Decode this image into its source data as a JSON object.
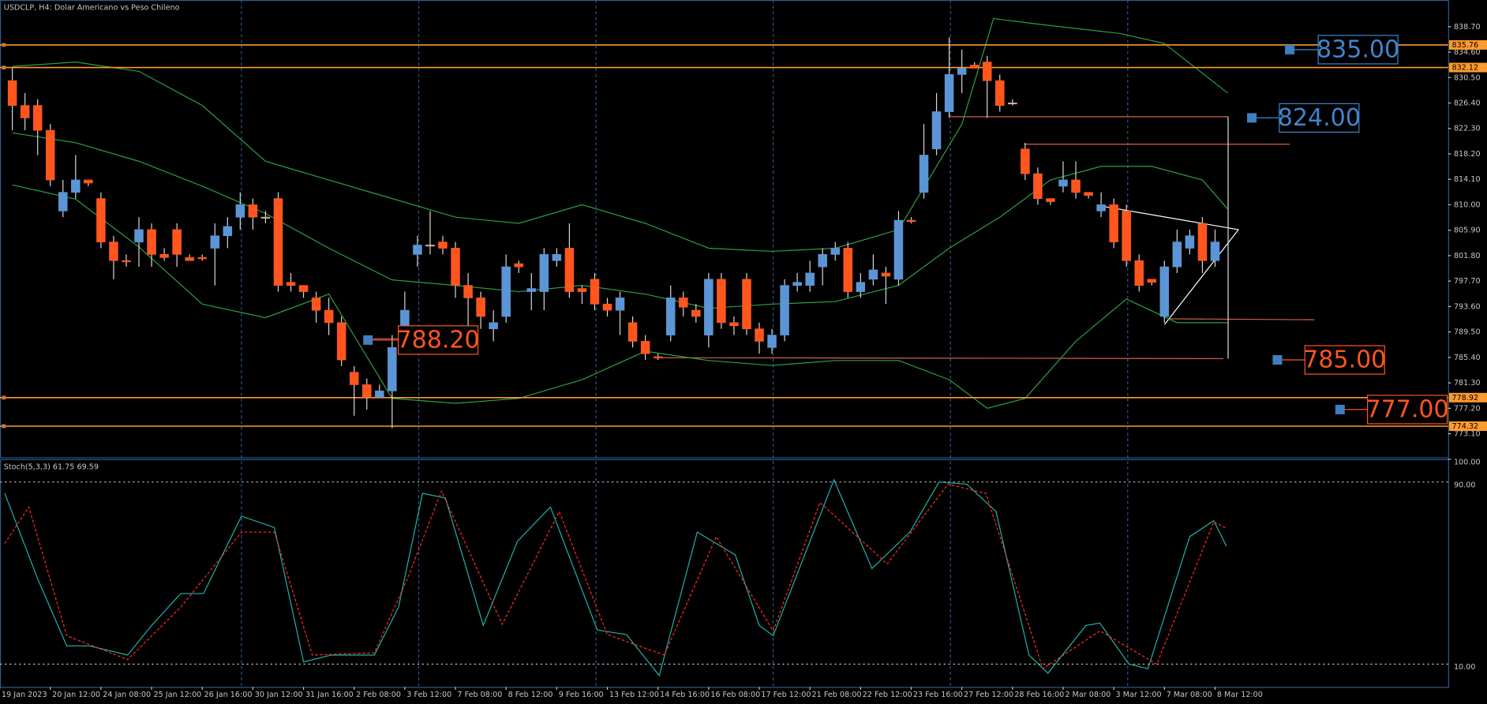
{
  "chart_data": {
    "type": "candlestick",
    "title": "USDCLP, H4:  Dolar Americano vs Peso Chileno",
    "up_color": "#5b95d6",
    "down_color": "#ff561e",
    "ylim": [
      769.3,
      843.0
    ],
    "yticks": [
      {
        "value": 838.7,
        "label": "838.70"
      },
      {
        "value": 834.6,
        "label": "834.60"
      },
      {
        "value": 830.5,
        "label": "830.50"
      },
      {
        "value": 826.4,
        "label": "826.40"
      },
      {
        "value": 822.3,
        "label": "822.30"
      },
      {
        "value": 818.2,
        "label": "818.20"
      },
      {
        "value": 814.1,
        "label": "814.10"
      },
      {
        "value": 810.0,
        "label": "810.00"
      },
      {
        "value": 805.9,
        "label": "805.90"
      },
      {
        "value": 801.8,
        "label": "801.80"
      },
      {
        "value": 797.7,
        "label": "797.70"
      },
      {
        "value": 793.6,
        "label": "793.60"
      },
      {
        "value": 789.5,
        "label": "789.50"
      },
      {
        "value": 785.4,
        "label": "785.40"
      },
      {
        "value": 781.3,
        "label": "781.30"
      },
      {
        "value": 777.2,
        "label": "777.20"
      },
      {
        "value": 773.1,
        "label": "773.10"
      }
    ],
    "xticks": [
      {
        "value": -1,
        "label": "19 Jan 2023"
      },
      {
        "value": 3,
        "label": "20 Jan 12:00"
      },
      {
        "value": 7,
        "label": "24 Jan 08:00"
      },
      {
        "value": 11,
        "label": "25 Jan 12:00"
      },
      {
        "value": 15,
        "label": "26 Jan 16:00"
      },
      {
        "value": 19,
        "label": "30 Jan 12:00"
      },
      {
        "value": 23,
        "label": "31 Jan 16:00"
      },
      {
        "value": 27,
        "label": "2 Feb 08:00"
      },
      {
        "value": 31,
        "label": "3 Feb 12:00"
      },
      {
        "value": 35,
        "label": "7 Feb 08:00"
      },
      {
        "value": 39,
        "label": "8 Feb 12:00"
      },
      {
        "value": 43,
        "label": "9 Feb 16:00"
      },
      {
        "value": 47,
        "label": "13 Feb 12:00"
      },
      {
        "value": 51,
        "label": "14 Feb 16:00"
      },
      {
        "value": 55,
        "label": "16 Feb 08:00"
      },
      {
        "value": 59,
        "label": "17 Feb 12:00"
      },
      {
        "value": 63,
        "label": "21 Feb 08:00"
      },
      {
        "value": 67,
        "label": "22 Feb 12:00"
      },
      {
        "value": 71,
        "label": "23 Feb 16:00"
      },
      {
        "value": 75,
        "label": "27 Feb 12:00"
      },
      {
        "value": 79,
        "label": "28 Feb 16:00"
      },
      {
        "value": 83,
        "label": "2 Mar 08:00"
      },
      {
        "value": 87,
        "label": "3 Mar 12:00"
      },
      {
        "value": 91,
        "label": "7 Mar 08:00"
      },
      {
        "value": 95,
        "label": "8 Mar 12:00"
      }
    ],
    "open": [
      830,
      826,
      826,
      822,
      809,
      812,
      814,
      811,
      804,
      801,
      804,
      806,
      802,
      806,
      801.5,
      801.5,
      803,
      805,
      808,
      810,
      808,
      811,
      797.5,
      797,
      795,
      793,
      791,
      783,
      781,
      779,
      780,
      788,
      802,
      803.5,
      804,
      803,
      797,
      795,
      790,
      792,
      800.5,
      796,
      796,
      801,
      803,
      796.5,
      798,
      794,
      793,
      791,
      788,
      785.5,
      789,
      795,
      793,
      789,
      798,
      791,
      798,
      790,
      787,
      789,
      797,
      797,
      800,
      802,
      803,
      796,
      798,
      799,
      798,
      807.5,
      812,
      819,
      825,
      831,
      832.5,
      833,
      830,
      826.4,
      819,
      815,
      811,
      813,
      814,
      812,
      809,
      810,
      809,
      801,
      798,
      792,
      800,
      803,
      807,
      801
    ],
    "high": [
      832,
      828,
      827,
      823,
      814,
      818,
      814,
      812,
      805,
      802,
      808,
      807,
      803,
      807,
      802,
      802,
      807,
      808,
      812,
      811,
      809,
      812,
      799,
      797,
      796,
      795,
      792,
      784,
      782,
      781,
      789,
      796,
      805,
      809,
      805,
      804,
      799,
      796,
      793,
      802,
      801,
      799,
      803,
      803,
      807,
      797,
      799,
      795,
      796,
      792,
      789,
      786,
      797,
      796,
      794,
      799,
      799,
      792,
      799,
      791,
      790,
      798,
      799,
      801,
      803,
      804,
      804,
      799,
      802,
      800,
      809,
      808,
      823,
      828,
      837,
      835,
      833,
      834,
      831,
      827,
      820,
      816,
      811,
      817,
      817,
      812,
      812,
      811,
      810,
      802,
      798,
      801,
      806,
      806,
      808,
      806
    ],
    "low": [
      822,
      822,
      818,
      813,
      808,
      811,
      813,
      803,
      798,
      800,
      800,
      800,
      801,
      800,
      801,
      801,
      797,
      803,
      806,
      806,
      807,
      796,
      796,
      795,
      791,
      789,
      784,
      776,
      777,
      779,
      774,
      786,
      800,
      802,
      802,
      795,
      790,
      790,
      788,
      791,
      799,
      793,
      793,
      800,
      795,
      794,
      793,
      792,
      789,
      787,
      785,
      785,
      788,
      792,
      791,
      787,
      790,
      789,
      789,
      786,
      786,
      788,
      796,
      796,
      797,
      801,
      795,
      795,
      797,
      794,
      797,
      807,
      811,
      818,
      824,
      828,
      832,
      824,
      825,
      826,
      814,
      810,
      810,
      812,
      811,
      811,
      808,
      803,
      800,
      796,
      797,
      791,
      799,
      802,
      799,
      800
    ],
    "close": [
      826,
      824,
      822,
      814,
      812,
      814,
      813.5,
      804,
      801,
      800.8,
      806,
      802,
      801.5,
      802,
      801,
      801.3,
      805,
      806.5,
      810,
      808,
      808,
      797,
      797,
      796,
      793,
      791,
      785,
      781,
      779,
      780,
      787,
      793,
      803.5,
      803.5,
      803,
      797,
      795,
      792,
      791,
      800,
      800,
      796.5,
      802,
      802,
      796,
      796,
      794,
      793,
      795,
      788,
      786,
      785.3,
      795,
      793.5,
      792,
      798,
      791,
      790.5,
      790,
      788,
      789,
      797,
      797.5,
      799,
      802,
      803,
      796,
      797.5,
      799.5,
      798.5,
      807.5,
      807.3,
      818,
      825,
      831,
      832,
      832,
      830,
      826,
      826.3,
      815,
      811,
      810.5,
      814,
      812,
      811.5,
      810,
      804,
      801,
      797,
      797.5,
      800,
      804,
      805,
      801,
      804
    ],
    "bands": [
      {
        "color": "#2f9e44",
        "x": [
          0,
          5,
          10,
          15,
          20,
          25,
          30,
          35,
          40,
          45,
          50,
          55,
          60,
          65,
          70,
          75,
          77.5,
          81.5,
          87.5,
          91,
          96
        ],
        "values": [
          832.3,
          833,
          831.5,
          826,
          817,
          814,
          811,
          808,
          807,
          810,
          807,
          803,
          802.5,
          803,
          806,
          823,
          840,
          839,
          837.6,
          836,
          828
        ]
      },
      {
        "color": "#2f9e44",
        "x": [
          0,
          5,
          10,
          15,
          20,
          25,
          30,
          35,
          40,
          45,
          50,
          55,
          60,
          65,
          70,
          74,
          78,
          82,
          86,
          90,
          94,
          96
        ],
        "values": [
          821.6,
          820,
          817,
          813,
          808.6,
          803,
          797.9,
          797,
          796,
          797,
          795.6,
          793.3,
          794,
          794.4,
          797,
          803,
          808,
          814,
          816.2,
          816.2,
          814,
          809.3
        ]
      },
      {
        "color": "#2f9e44",
        "x": [
          0,
          5,
          10,
          15,
          20,
          25,
          30,
          35,
          40,
          45,
          50,
          55,
          60,
          65,
          70,
          74,
          77,
          80,
          84,
          88,
          92,
          96
        ],
        "values": [
          813.2,
          810.9,
          803.2,
          794,
          791.8,
          795.6,
          778.8,
          778,
          778.8,
          781.8,
          786.4,
          784.9,
          784.1,
          784.9,
          784.9,
          781.8,
          777.2,
          778.8,
          788,
          794.8,
          791,
          791
        ]
      }
    ],
    "levels": [
      835.76,
      832.12,
      778.92,
      774.32
    ],
    "level_color": "#ff9a2e",
    "annotations": [
      {
        "value": 835,
        "label": "835.00",
        "color": "#3f86cc"
      },
      {
        "value": 824,
        "label": "824.00",
        "color": "#3f86cc"
      },
      {
        "value": 788.2,
        "label": "788.20",
        "color": "#ff561e"
      },
      {
        "value": 785,
        "label": "785.00",
        "color": "#ff561e"
      },
      {
        "value": 777,
        "label": "777.00",
        "color": "#ff561e"
      }
    ],
    "stoch": {
      "title": "Stoch(5,3,3) 61.75 69.59",
      "ylim": [
        0,
        100
      ],
      "yticks": [
        {
          "value": 100,
          "label": "100.00"
        },
        {
          "value": 90,
          "label": "90.00"
        },
        {
          "value": 10,
          "label": "10.00"
        }
      ],
      "lines": [
        {
          "color": "#20b2aa",
          "dashed": false,
          "x": [
            -0.6,
            2.0,
            4.3,
            6.1,
            9.1,
            11.0,
            13.3,
            15.1,
            18.1,
            20.7,
            23.0,
            25.2,
            28.6,
            30.5,
            32.4,
            34.2,
            37.2,
            39.9,
            42.5,
            46.2,
            48.5,
            51.1,
            54.1,
            57.1,
            59.0,
            60.1,
            64.9,
            67.9,
            70.9,
            73.2,
            75.4,
            77.7,
            80.3,
            81.8,
            84.8,
            85.9,
            88.2,
            89.7,
            93.0,
            94.9,
            95.9
          ],
          "values": [
            85,
            47.5,
            18,
            18,
            14,
            27,
            41,
            41,
            75,
            70,
            11,
            14,
            14,
            35,
            85,
            83,
            27,
            64,
            79,
            25,
            23,
            5,
            68,
            58,
            27,
            22.5,
            91,
            52,
            68,
            90,
            89,
            77,
            14,
            6,
            27,
            28,
            10,
            8,
            66,
            73,
            61.75
          ]
        },
        {
          "color": "#ff2a2a",
          "dashed": true,
          "x": [
            -0.6,
            1.3,
            4.3,
            9.1,
            13.3,
            18.1,
            20.7,
            23.7,
            28.6,
            31.2,
            33.9,
            38.7,
            43.2,
            47.0,
            51.5,
            55.6,
            60.1,
            63.8,
            69.1,
            73.9,
            76.9,
            81.4,
            85.9,
            90.4,
            94.9,
            95.9
          ],
          "values": [
            63,
            79,
            22.5,
            12,
            35,
            68,
            68,
            14,
            15,
            47.5,
            86,
            27.5,
            77,
            23,
            14,
            66,
            24.6,
            81,
            54,
            89,
            85,
            8,
            24.6,
            10,
            72.5,
            69.59
          ]
        }
      ]
    }
  }
}
